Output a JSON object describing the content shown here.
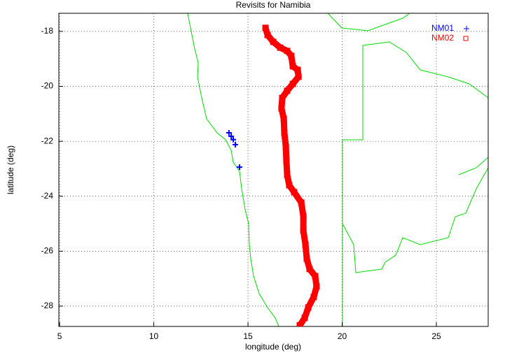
{
  "chart_data": {
    "type": "scatter",
    "title": "Revisits for Namibia",
    "x_label": "longitude (deg)",
    "y_label": "latitude (deg)",
    "xlim": [
      4.96,
      27.75
    ],
    "ylim": [
      -28.74,
      -17.34
    ],
    "xticks": [
      5,
      10,
      15,
      20,
      25
    ],
    "yticks": [
      -28,
      -26,
      -24,
      -22,
      -20,
      -18
    ],
    "grid": true,
    "legend_position": "top-right",
    "series": [
      {
        "name": "NM01",
        "color": "#0000ff",
        "marker": "plus",
        "x": [
          13.99,
          14.11,
          14.22,
          14.33,
          14.55
        ],
        "values": [
          -21.69,
          -21.82,
          -21.94,
          -22.12,
          -22.94
        ]
      },
      {
        "name": "NM02",
        "color": "#ff0000",
        "marker": "square",
        "x": [
          15.93,
          16.04,
          16.34,
          16.71,
          17.08,
          17.3,
          17.38,
          17.64,
          17.68,
          17.38,
          17.08,
          16.82,
          16.78,
          16.9,
          16.93,
          17.01,
          17.04,
          17.08,
          17.19,
          17.45,
          17.83,
          17.94,
          17.94,
          18.05,
          18.12,
          18.27,
          18.57,
          18.64,
          18.49,
          18.2,
          18.01,
          17.75
        ],
        "values": [
          -17.87,
          -18.13,
          -18.38,
          -18.59,
          -18.71,
          -18.89,
          -19.27,
          -19.4,
          -19.65,
          -19.91,
          -20.16,
          -20.42,
          -20.8,
          -21.18,
          -21.69,
          -22.2,
          -22.71,
          -23.22,
          -23.6,
          -23.85,
          -24.23,
          -24.74,
          -25.25,
          -25.76,
          -26.27,
          -26.65,
          -26.91,
          -27.29,
          -27.67,
          -28.05,
          -28.43,
          -28.7
        ]
      }
    ]
  }
}
